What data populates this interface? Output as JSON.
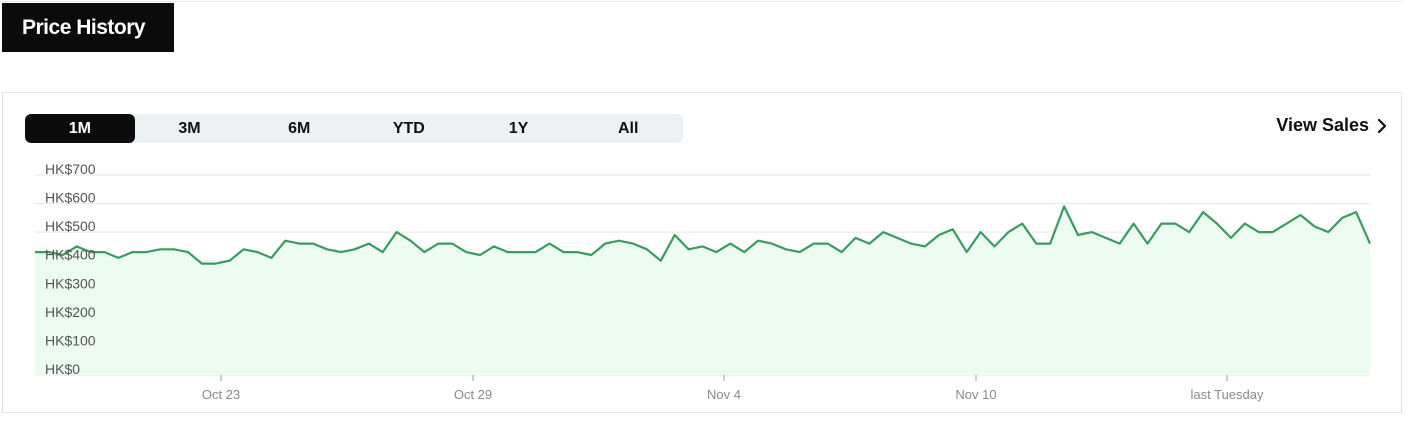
{
  "header": {
    "title": "Price History"
  },
  "controls": {
    "ranges": [
      "1M",
      "3M",
      "6M",
      "YTD",
      "1Y",
      "All"
    ],
    "active_range": "1M",
    "view_sales_label": "View Sales"
  },
  "colors": {
    "line": "#3a9a63",
    "fill": "#edfcf1",
    "grid": "#e6e6e6",
    "active_tab": "#0b0b0b",
    "tab_bg": "#eef1f4"
  },
  "chart_data": {
    "type": "area",
    "ylim": [
      0,
      700
    ],
    "y_ticks": [
      0,
      100,
      200,
      300,
      400,
      500,
      600,
      700
    ],
    "y_tick_labels": [
      "HK$0",
      "HK$100",
      "HK$200",
      "HK$300",
      "HK$400",
      "HK$500",
      "HK$600",
      "HK$700"
    ],
    "x_ticks": [
      "Oct 23",
      "Oct 29",
      "Nov 4",
      "Nov 10",
      "last Tuesday"
    ],
    "grid": "horizontal",
    "series": [
      {
        "values": [
          430,
          430,
          420,
          450,
          430,
          430,
          410,
          430,
          430,
          440,
          440,
          430,
          390,
          390,
          400,
          440,
          430,
          410,
          470,
          460,
          460,
          440,
          430,
          440,
          460,
          430,
          500,
          470,
          430,
          460,
          460,
          430,
          420,
          450,
          430,
          430,
          430,
          460,
          430,
          430,
          420,
          460,
          470,
          460,
          440,
          400,
          490,
          440,
          450,
          430,
          460,
          430,
          470,
          460,
          440,
          430,
          460,
          460,
          430,
          480,
          460,
          500,
          480,
          460,
          450,
          490,
          510,
          430,
          500,
          450,
          500,
          530,
          460,
          460,
          590,
          490,
          500,
          480,
          460,
          530,
          460,
          530,
          530,
          500,
          570,
          530,
          480,
          530,
          500,
          500,
          530,
          560,
          520,
          500,
          550,
          570,
          460
        ]
      }
    ]
  }
}
